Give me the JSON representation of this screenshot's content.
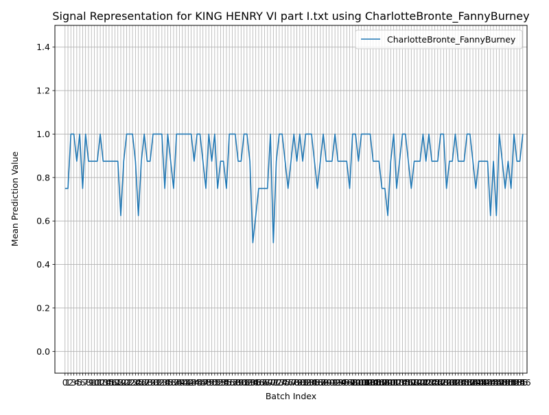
{
  "chart_data": {
    "type": "line",
    "title": "Signal Representation for KING HENRY VI part I.txt using CharlotteBronte_FannyBurney",
    "xlabel": "Batch Index",
    "ylabel": "Mean Prediction Value",
    "xlim": [
      -3.45,
      157.45
    ],
    "ylim": [
      -0.1,
      1.5
    ],
    "yticks": [
      0.0,
      0.2,
      0.4,
      0.6,
      0.8,
      1.0,
      1.2,
      1.4
    ],
    "ytick_labels": [
      "0.0",
      "0.2",
      "0.4",
      "0.6",
      "0.8",
      "1.0",
      "1.2",
      "1.4"
    ],
    "grid": true,
    "legend_position": "top-right",
    "colors": {
      "series": "#1f77b4",
      "grid": "#b0b0b0"
    },
    "series": [
      {
        "name": "CharlotteBronte_FannyBurney",
        "values": [
          0.75,
          0.75,
          1.0,
          1.0,
          0.875,
          1.0,
          0.75,
          1.0,
          0.875,
          0.875,
          0.875,
          0.875,
          1.0,
          0.875,
          0.875,
          0.875,
          0.875,
          0.875,
          0.875,
          0.625,
          0.875,
          1.0,
          1.0,
          1.0,
          0.875,
          0.625,
          0.875,
          1.0,
          0.875,
          0.875,
          1.0,
          1.0,
          1.0,
          1.0,
          0.75,
          1.0,
          0.875,
          0.75,
          1.0,
          1.0,
          1.0,
          1.0,
          1.0,
          1.0,
          0.875,
          1.0,
          1.0,
          0.875,
          0.75,
          1.0,
          0.875,
          1.0,
          0.75,
          0.875,
          0.875,
          0.75,
          1.0,
          1.0,
          1.0,
          0.875,
          0.875,
          1.0,
          1.0,
          0.875,
          0.5,
          0.625,
          0.75,
          0.75,
          0.75,
          0.75,
          1.0,
          0.5,
          0.875,
          1.0,
          1.0,
          0.875,
          0.75,
          0.875,
          1.0,
          0.875,
          1.0,
          0.875,
          1.0,
          1.0,
          1.0,
          0.875,
          0.75,
          0.875,
          1.0,
          0.875,
          0.875,
          0.875,
          1.0,
          0.875,
          0.875,
          0.875,
          0.875,
          0.75,
          1.0,
          1.0,
          0.875,
          1.0,
          1.0,
          1.0,
          1.0,
          0.875,
          0.875,
          0.875,
          0.75,
          0.75,
          0.625,
          0.875,
          1.0,
          0.75,
          0.875,
          1.0,
          1.0,
          0.875,
          0.75,
          0.875,
          0.875,
          0.875,
          1.0,
          0.875,
          1.0,
          0.875,
          0.875,
          0.875,
          1.0,
          1.0,
          0.75,
          0.875,
          0.875,
          1.0,
          0.875,
          0.875,
          0.875,
          1.0,
          1.0,
          0.875,
          0.75,
          0.875,
          0.875,
          0.875,
          0.875,
          0.625,
          0.875,
          0.625,
          1.0,
          0.875,
          0.75,
          0.875,
          0.75,
          1.0,
          0.875,
          0.875,
          1.0
        ]
      }
    ]
  }
}
